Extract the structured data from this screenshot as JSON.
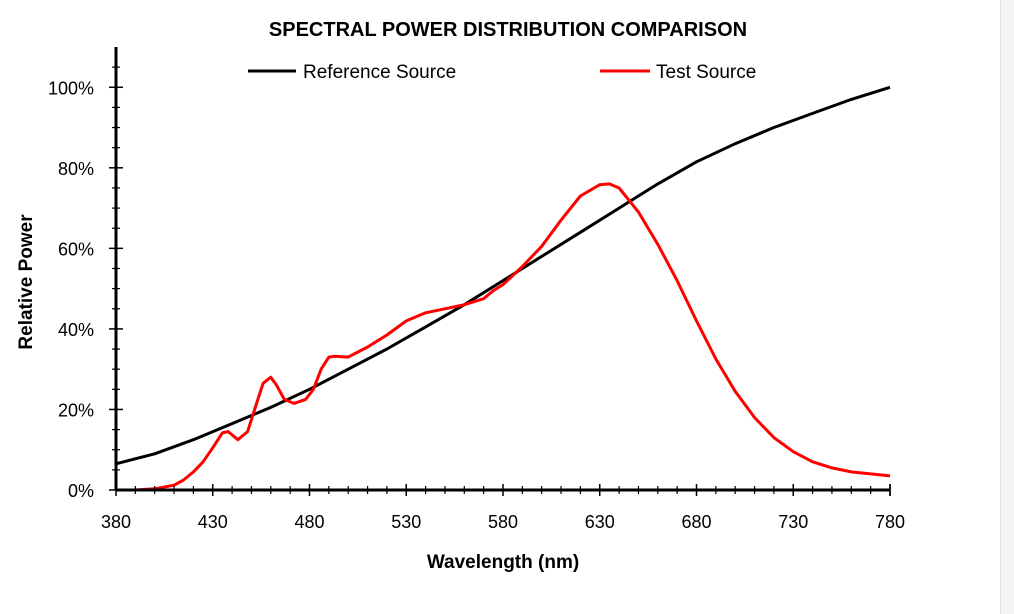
{
  "chart_data": {
    "type": "line",
    "title": "SPECTRAL POWER DISTRIBUTION COMPARISON",
    "xlabel": "Wavelength (nm)",
    "ylabel": "Relative Power",
    "xlim": [
      380,
      780
    ],
    "ylim": [
      0,
      110
    ],
    "x_ticks": [
      380,
      430,
      480,
      530,
      580,
      630,
      680,
      730,
      780
    ],
    "y_ticks": [
      0,
      20,
      40,
      60,
      80,
      100
    ],
    "y_tick_labels": [
      "0%",
      "20%",
      "40%",
      "60%",
      "80%",
      "100%"
    ],
    "grid": false,
    "legend_position": "top",
    "series": [
      {
        "name": "Reference Source",
        "color": "#000000",
        "x": [
          380,
          400,
          420,
          440,
          460,
          480,
          500,
          520,
          540,
          560,
          580,
          600,
          620,
          640,
          660,
          680,
          700,
          720,
          740,
          760,
          780
        ],
        "y": [
          6.5,
          9,
          12.5,
          16.5,
          20.5,
          25,
          30,
          35,
          40.5,
          46,
          52,
          58,
          64,
          70,
          76,
          81.5,
          86,
          90,
          93.5,
          97,
          100
        ]
      },
      {
        "name": "Test Source",
        "color": "#ff0000",
        "x": [
          380,
          390,
          400,
          410,
          415,
          420,
          425,
          430,
          435,
          438,
          443,
          448,
          452,
          456,
          460,
          463,
          467,
          472,
          478,
          482,
          486,
          490,
          493,
          500,
          510,
          520,
          530,
          540,
          550,
          560,
          570,
          575,
          580,
          590,
          600,
          610,
          620,
          630,
          635,
          640,
          650,
          660,
          670,
          680,
          690,
          700,
          710,
          720,
          730,
          740,
          750,
          760,
          770,
          780
        ],
        "y": [
          0,
          0,
          0.3,
          1.2,
          2.5,
          4.5,
          7,
          10.5,
          14.2,
          14.5,
          12.5,
          14.5,
          20.5,
          26.5,
          28,
          26,
          22.5,
          21.5,
          22.5,
          25,
          30,
          33,
          33.2,
          33,
          35.5,
          38.5,
          42,
          44,
          45,
          46,
          47.5,
          49.5,
          51,
          55.5,
          60.5,
          67,
          73,
          75.8,
          76,
          75,
          69,
          61,
          52,
          42,
          32.5,
          24.5,
          18,
          13,
          9.5,
          7,
          5.5,
          4.5,
          4,
          3.5
        ]
      }
    ]
  },
  "colors": {
    "reference": "#000000",
    "test": "#ff0000",
    "axis": "#000000"
  }
}
